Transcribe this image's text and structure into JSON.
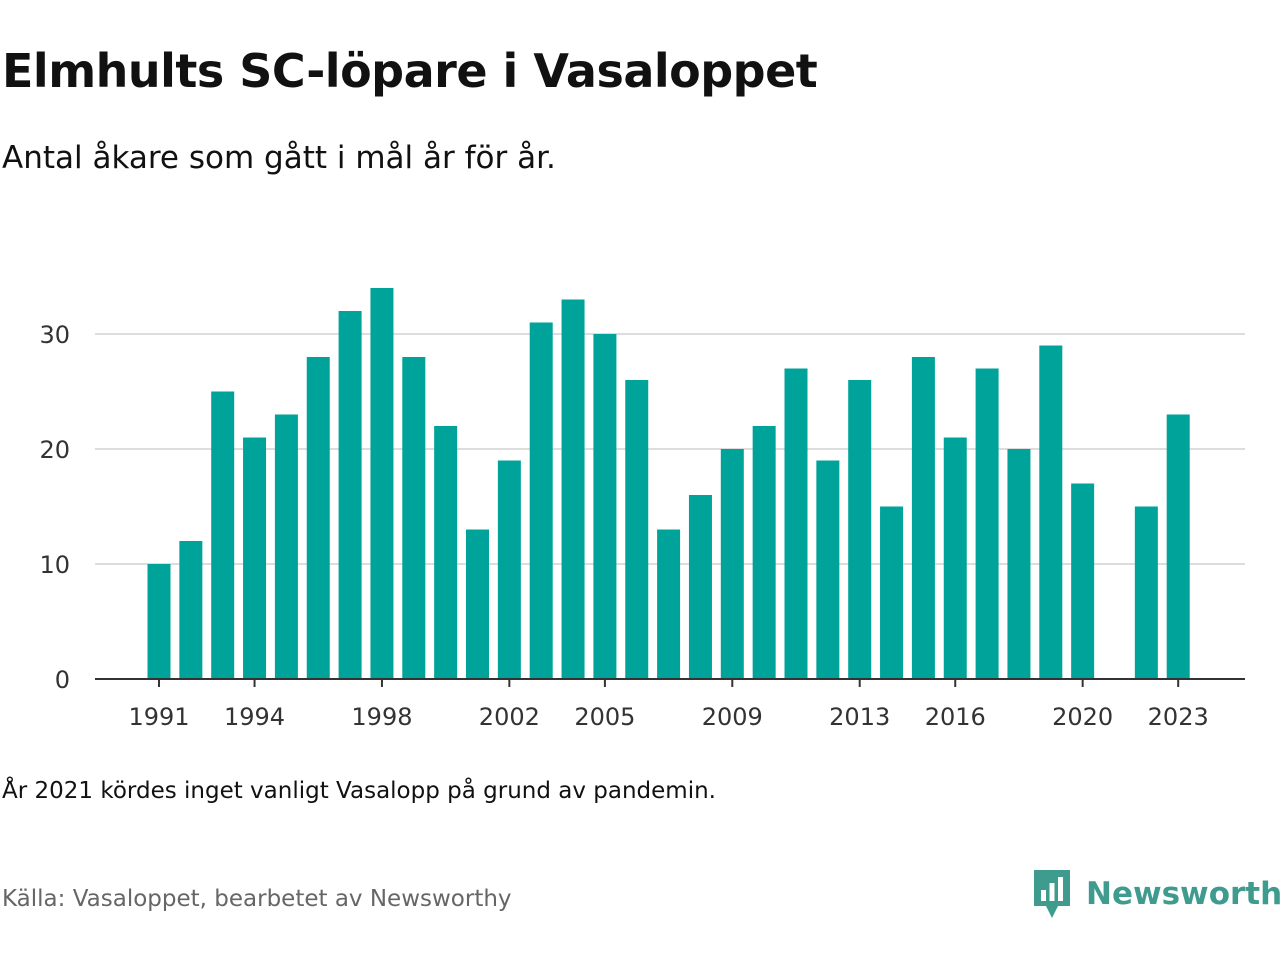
{
  "title": "Elmhults SC-löpare i Vasaloppet",
  "subtitle": "Antal åkare som gått i mål år för år.",
  "note": "År 2021 kördes inget vanligt Vasalopp på grund av pandemin.",
  "source": "Källa: Vasaloppet, bearbetet av Newsworthy",
  "brand": {
    "name": "Newsworthy",
    "icon": "newsworthy-logo-icon"
  },
  "colors": {
    "bar": "#00a39a",
    "grid": "#dddddd",
    "axis": "#333333",
    "brand": "#3f9b8e"
  },
  "chart_data": {
    "type": "bar",
    "x": [
      1991,
      1992,
      1993,
      1994,
      1995,
      1996,
      1997,
      1998,
      1999,
      2000,
      2001,
      2002,
      2003,
      2004,
      2005,
      2006,
      2007,
      2008,
      2009,
      2010,
      2011,
      2012,
      2013,
      2014,
      2015,
      2016,
      2017,
      2018,
      2019,
      2020,
      2021,
      2022,
      2023
    ],
    "values": [
      10,
      12,
      25,
      21,
      23,
      28,
      32,
      34,
      28,
      22,
      13,
      19,
      31,
      33,
      30,
      26,
      13,
      16,
      20,
      22,
      27,
      19,
      26,
      15,
      28,
      21,
      27,
      20,
      29,
      17,
      null,
      15,
      23
    ],
    "x_tick_labels": [
      "1991",
      "1994",
      "1998",
      "2002",
      "2005",
      "2009",
      "2013",
      "2016",
      "2020",
      "2023"
    ],
    "y_ticks": [
      0,
      10,
      20,
      30
    ],
    "ylim": [
      0,
      35
    ],
    "grid": true,
    "xlabel": "",
    "ylabel": ""
  }
}
